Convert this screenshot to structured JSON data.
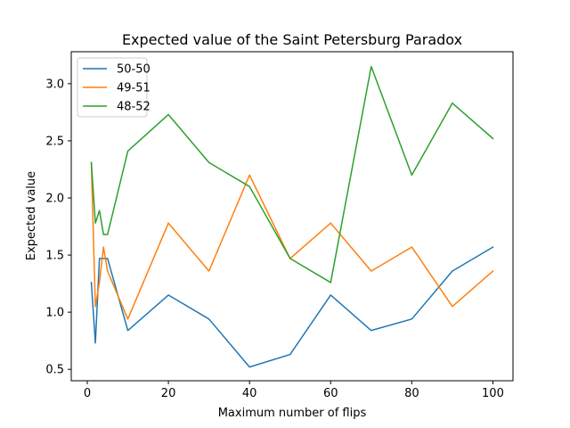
{
  "chart_data": {
    "type": "line",
    "title": "Expected value of the Saint Petersburg Paradox",
    "xlabel": "Maximum number of flips",
    "ylabel": "Expected value",
    "xlim": [
      -3.95,
      104.95
    ],
    "ylim": [
      0.4,
      3.28
    ],
    "xticks": [
      0,
      20,
      40,
      60,
      80,
      100
    ],
    "xtick_labels": [
      "0",
      "20",
      "40",
      "60",
      "80",
      "100"
    ],
    "yticks": [
      0.5,
      1.0,
      1.5,
      2.0,
      2.5,
      3.0
    ],
    "ytick_labels": [
      "0.5",
      "1.0",
      "1.5",
      "2.0",
      "2.5",
      "3.0"
    ],
    "grid": false,
    "legend_position": "top-left",
    "x": [
      1,
      2,
      3,
      4,
      5,
      10,
      20,
      30,
      40,
      50,
      60,
      70,
      80,
      90,
      100
    ],
    "series": [
      {
        "name": "50-50",
        "color": "#1f77b4",
        "values": [
          1.26,
          0.73,
          1.47,
          1.47,
          1.47,
          0.84,
          1.15,
          0.94,
          0.52,
          0.63,
          1.15,
          0.84,
          0.94,
          1.36,
          1.57
        ]
      },
      {
        "name": "49-51",
        "color": "#ff7f0e",
        "values": [
          2.31,
          1.05,
          1.26,
          1.57,
          1.36,
          0.94,
          1.78,
          1.36,
          2.2,
          1.47,
          1.78,
          1.36,
          1.57,
          1.05,
          1.36
        ]
      },
      {
        "name": "48-52",
        "color": "#2ca02c",
        "values": [
          2.31,
          1.78,
          1.89,
          1.68,
          1.68,
          2.41,
          2.73,
          2.31,
          2.1,
          1.47,
          1.26,
          3.15,
          2.2,
          2.83,
          2.52
        ]
      }
    ]
  }
}
